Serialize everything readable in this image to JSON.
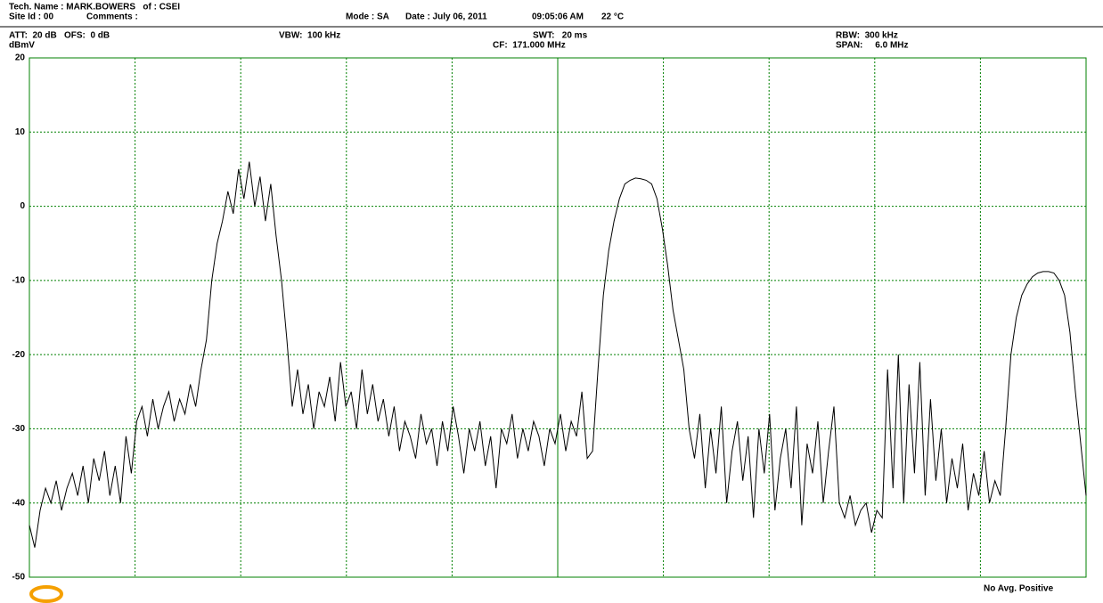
{
  "header": {
    "tech_name": "Tech. Name : MARK.BOWERS   of : CSEI",
    "site_id": "Site Id : 00",
    "comments": "Comments :",
    "mode": "Mode : SA",
    "date": "Date : July 06, 2011",
    "time": "09:05:06 AM",
    "temperature": "22 °C",
    "att": "ATT:  20 dB",
    "ofs": "OFS:  0 dB",
    "vbw": "VBW:  100 kHz",
    "swt": "SWT:   20 ms",
    "cf": "CF:  171.000 MHz",
    "rbw": "RBW:  300 kHz",
    "span": "SPAN:     6.0 MHz"
  },
  "footer": "No Avg. Positive",
  "chart_data": {
    "type": "line",
    "y_label": "dBmV",
    "color": "#000000",
    "grid": true,
    "ylim": [
      -50,
      20
    ],
    "yticks": [
      -50,
      -40,
      -30,
      -20,
      -10,
      0,
      10,
      20
    ],
    "values": [
      -43,
      -46,
      -41,
      -38,
      -40,
      -37,
      -41,
      -38,
      -36,
      -39,
      -35,
      -40,
      -34,
      -37,
      -33,
      -39,
      -35,
      -40,
      -31,
      -36,
      -29,
      -27,
      -31,
      -26,
      -30,
      -27,
      -25,
      -29,
      -26,
      -28,
      -24,
      -27,
      -22,
      -18,
      -10,
      -5,
      -2,
      2,
      -1,
      5,
      1,
      6,
      0,
      4,
      -2,
      3,
      -4,
      -10,
      -18,
      -27,
      -22,
      -28,
      -24,
      -30,
      -25,
      -27,
      -23,
      -29,
      -21,
      -27,
      -25,
      -30,
      -22,
      -28,
      -24,
      -29,
      -26,
      -31,
      -27,
      -33,
      -29,
      -31,
      -34,
      -28,
      -32,
      -30,
      -35,
      -29,
      -33,
      -27,
      -31,
      -36,
      -30,
      -33,
      -29,
      -35,
      -31,
      -38,
      -30,
      -32,
      -28,
      -34,
      -30,
      -33,
      -29,
      -31,
      -35,
      -30,
      -32,
      -28,
      -33,
      -29,
      -31,
      -25,
      -34,
      -33,
      -22,
      -12,
      -6,
      -2,
      1,
      3,
      3.5,
      3.8,
      3.7,
      3.5,
      3,
      1,
      -3,
      -8,
      -14,
      -18,
      -22,
      -30,
      -34,
      -28,
      -38,
      -30,
      -36,
      -27,
      -40,
      -33,
      -29,
      -37,
      -31,
      -42,
      -30,
      -36,
      -28,
      -41,
      -34,
      -30,
      -38,
      -27,
      -43,
      -32,
      -36,
      -29,
      -40,
      -33,
      -27,
      -40,
      -42,
      -39,
      -43,
      -41,
      -40,
      -44,
      -41,
      -42,
      -22,
      -38,
      -20,
      -40,
      -24,
      -36,
      -21,
      -39,
      -26,
      -37,
      -30,
      -40,
      -34,
      -38,
      -32,
      -41,
      -36,
      -39,
      -33,
      -40,
      -37,
      -39,
      -30,
      -20,
      -15,
      -12,
      -10.5,
      -9.5,
      -9,
      -8.8,
      -8.8,
      -9,
      -10,
      -12,
      -17,
      -25,
      -32,
      -39
    ]
  }
}
